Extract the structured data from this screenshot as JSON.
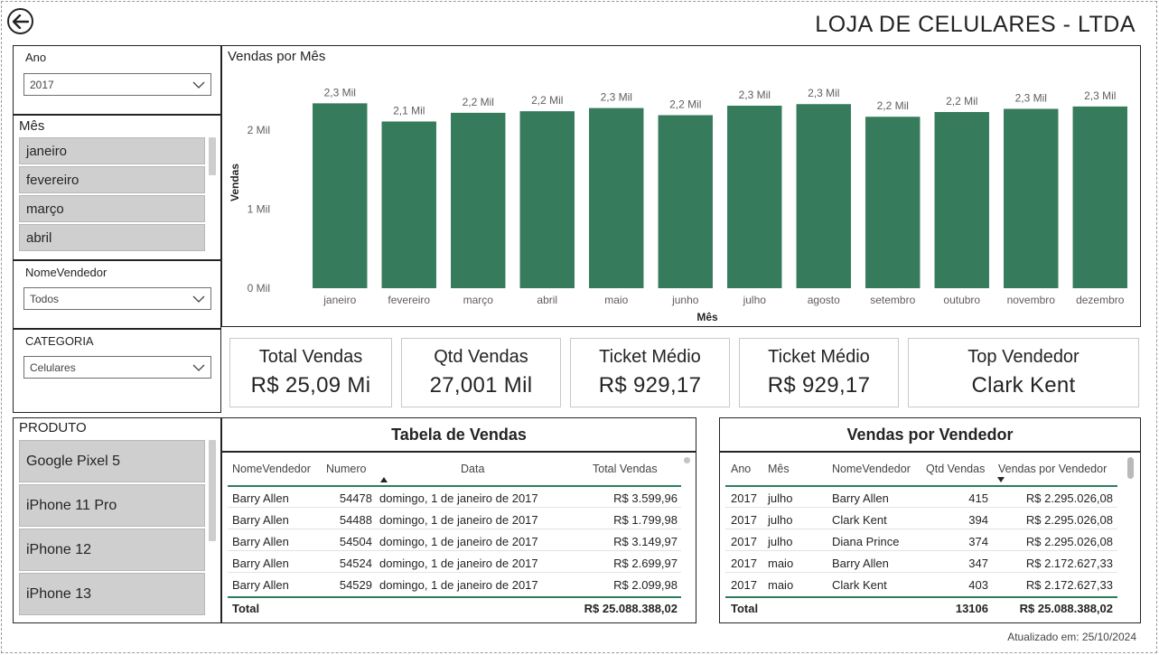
{
  "header": {
    "title": "LOJA DE CELULARES - LTDA"
  },
  "footer": {
    "updated": "Atualizado em: 25/10/2024"
  },
  "filters": {
    "ano": {
      "label": "Ano",
      "value": "2017"
    },
    "mes": {
      "label": "Mês",
      "items": [
        "janeiro",
        "fevereiro",
        "março",
        "abril"
      ]
    },
    "vendedor": {
      "label": "NomeVendedor",
      "value": "Todos"
    },
    "categoria": {
      "label": "CATEGORIA",
      "value": "Celulares"
    },
    "produto": {
      "label": "PRODUTO",
      "items": [
        "Google Pixel 5",
        "iPhone 11 Pro",
        "iPhone 12",
        "iPhone 13"
      ]
    }
  },
  "chart_data": {
    "type": "bar",
    "title": "Vendas por Mês",
    "xlabel": "Mês",
    "ylabel": "Vendas",
    "categories": [
      "janeiro",
      "fevereiro",
      "março",
      "abril",
      "maio",
      "junho",
      "julho",
      "agosto",
      "setembro",
      "outubro",
      "novembro",
      "dezembro"
    ],
    "values": [
      2.34,
      2.11,
      2.22,
      2.24,
      2.28,
      2.19,
      2.31,
      2.33,
      2.17,
      2.23,
      2.27,
      2.3
    ],
    "value_labels": [
      "2,3 Mil",
      "2,1 Mil",
      "2,2 Mil",
      "2,2 Mil",
      "2,3 Mil",
      "2,2 Mil",
      "2,3 Mil",
      "2,3 Mil",
      "2,2 Mil",
      "2,2 Mil",
      "2,3 Mil",
      "2,3 Mil"
    ],
    "yticks": [
      "0 Mil",
      "1 Mil",
      "2 Mil"
    ],
    "ylim": [
      0,
      2.55
    ],
    "bar_color": "#367b5c"
  },
  "kpis": [
    {
      "label": "Total Vendas",
      "value": "R$ 25,09 Mi"
    },
    {
      "label": "Qtd Vendas",
      "value": "27,001 Mil"
    },
    {
      "label": "Ticket Médio",
      "value": "R$ 929,17"
    },
    {
      "label": "Ticket Médio",
      "value": "R$ 929,17"
    },
    {
      "label": "Top Vendedor",
      "value": "Clark Kent"
    }
  ],
  "sales_table": {
    "title": "Tabela de Vendas",
    "columns": [
      "NomeVendedor",
      "Numero",
      "Data",
      "Total Vendas"
    ],
    "rows": [
      [
        "Barry Allen",
        "54478",
        "domingo, 1 de janeiro de 2017",
        "R$ 3.599,96"
      ],
      [
        "Barry Allen",
        "54488",
        "domingo, 1 de janeiro de 2017",
        "R$ 1.799,98"
      ],
      [
        "Barry Allen",
        "54504",
        "domingo, 1 de janeiro de 2017",
        "R$ 3.149,97"
      ],
      [
        "Barry Allen",
        "54524",
        "domingo, 1 de janeiro de 2017",
        "R$ 2.699,97"
      ],
      [
        "Barry Allen",
        "54529",
        "domingo, 1 de janeiro de 2017",
        "R$ 2.099,98"
      ]
    ],
    "total_label": "Total",
    "total_value": "R$ 25.088.388,02"
  },
  "seller_table": {
    "title": "Vendas por Vendedor",
    "columns": [
      "Ano",
      "Mês",
      "NomeVendedor",
      "Qtd Vendas",
      "Vendas por Vendedor"
    ],
    "rows": [
      [
        "2017",
        "julho",
        "Barry Allen",
        "415",
        "R$ 2.295.026,08"
      ],
      [
        "2017",
        "julho",
        "Clark Kent",
        "394",
        "R$ 2.295.026,08"
      ],
      [
        "2017",
        "julho",
        "Diana Prince",
        "374",
        "R$ 2.295.026,08"
      ],
      [
        "2017",
        "maio",
        "Barry Allen",
        "347",
        "R$ 2.172.627,33"
      ],
      [
        "2017",
        "maio",
        "Clark Kent",
        "403",
        "R$ 2.172.627,33"
      ]
    ],
    "total_label": "Total",
    "total_qtd": "13106",
    "total_value": "R$ 25.088.388,02"
  }
}
